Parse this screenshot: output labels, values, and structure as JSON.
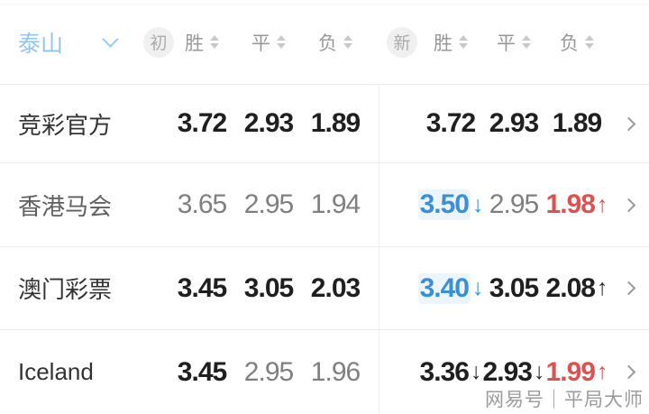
{
  "header": {
    "team": "泰山",
    "groups": [
      {
        "badge": "初",
        "cols": [
          "胜",
          "平",
          "负"
        ]
      },
      {
        "badge": "新",
        "cols": [
          "胜",
          "平",
          "负"
        ]
      }
    ]
  },
  "rows": [
    {
      "name": "竞彩官方",
      "name_cls": "dark",
      "initial": [
        {
          "v": "3.72",
          "cls": "bold"
        },
        {
          "v": "2.93",
          "cls": "bold"
        },
        {
          "v": "1.89",
          "cls": "bold"
        }
      ],
      "latest": [
        {
          "v": "3.72",
          "cls": "bold"
        },
        {
          "v": "2.93",
          "cls": "bold"
        },
        {
          "v": "1.89",
          "cls": "bold"
        }
      ]
    },
    {
      "name": "香港马会",
      "name_cls": "mid",
      "initial": [
        {
          "v": "3.65",
          "cls": "gray"
        },
        {
          "v": "2.95",
          "cls": "gray"
        },
        {
          "v": "1.94",
          "cls": "gray"
        }
      ],
      "latest": [
        {
          "v": "3.50",
          "cls": "blue",
          "arrow": "↓"
        },
        {
          "v": "2.95",
          "cls": "gray"
        },
        {
          "v": "1.98",
          "cls": "red",
          "arrow": "↑"
        }
      ]
    },
    {
      "name": "澳门彩票",
      "name_cls": "dark",
      "initial": [
        {
          "v": "3.45",
          "cls": "bold"
        },
        {
          "v": "3.05",
          "cls": "bold"
        },
        {
          "v": "2.03",
          "cls": "bold"
        }
      ],
      "latest": [
        {
          "v": "3.40",
          "cls": "blue",
          "arrow": "↓"
        },
        {
          "v": "3.05",
          "cls": "bold"
        },
        {
          "v": "2.08",
          "cls": "bold",
          "arrow": "↑"
        }
      ]
    },
    {
      "name": "Iceland",
      "name_cls": "dark",
      "initial": [
        {
          "v": "3.45",
          "cls": "bold"
        },
        {
          "v": "2.95",
          "cls": "gray"
        },
        {
          "v": "1.96",
          "cls": "gray"
        }
      ],
      "latest": [
        {
          "v": "3.36",
          "cls": "bold",
          "arrow": "↓"
        },
        {
          "v": "2.93",
          "cls": "bold",
          "arrow": "↓"
        },
        {
          "v": "1.99",
          "cls": "red",
          "arrow": "↑"
        }
      ]
    }
  ],
  "watermark": {
    "text": "网易号｜平局大师"
  },
  "colors": {
    "team_label_blue": "#92c4ec",
    "odds_down_blue": "#3a8fd9",
    "odds_up_red": "#de5151",
    "odds_dark": "#1f1f1f",
    "odds_muted": "#7f7f7f",
    "header_gray": "#989898",
    "badge_bg": "#f0f0f0",
    "divider": "#ededed"
  }
}
